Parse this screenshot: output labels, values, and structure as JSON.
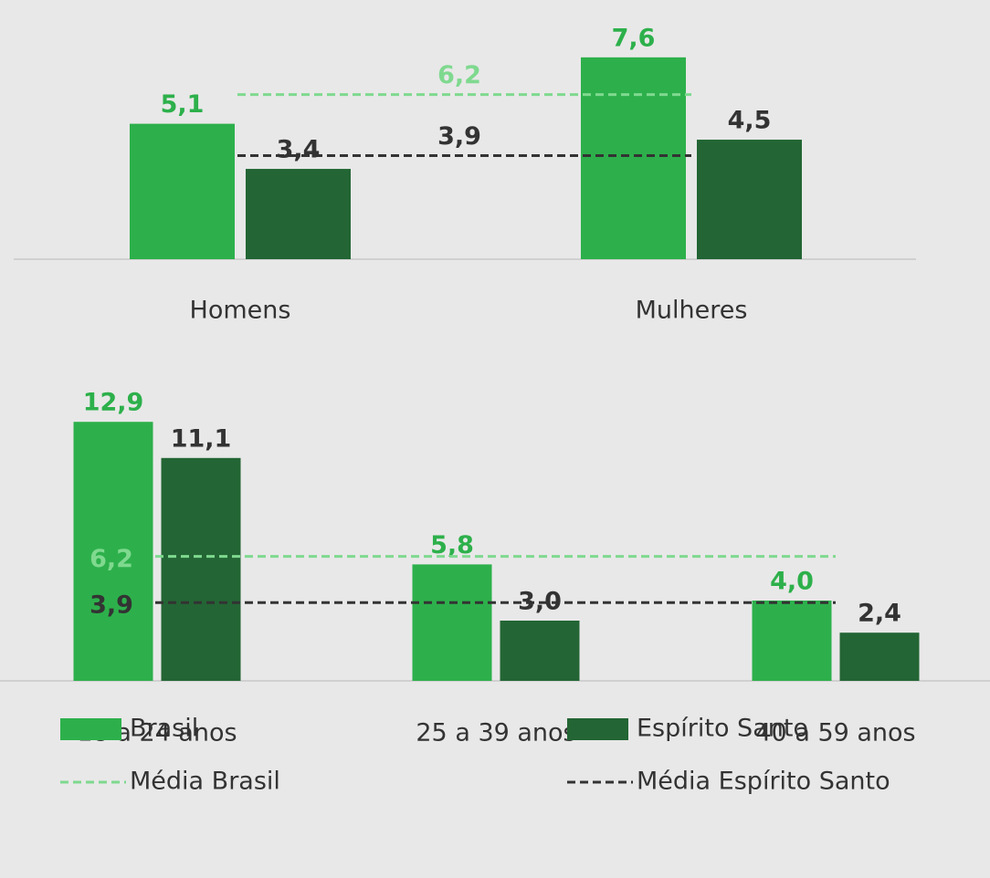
{
  "chart_data": [
    {
      "type": "bar",
      "categories": [
        "Homens",
        "Mulheres"
      ],
      "series": [
        {
          "name": "Brasil",
          "color": "#2db04b",
          "values": [
            5.1,
            7.6
          ],
          "value_labels": [
            "5,1",
            "7,6"
          ]
        },
        {
          "name": "Espírito Santo",
          "color": "#236534",
          "values": [
            3.4,
            4.5
          ],
          "value_labels": [
            "3,4",
            "4,5"
          ]
        }
      ],
      "reference_lines": [
        {
          "name": "Média Brasil",
          "color": "#7fd98f",
          "value": 6.2,
          "label": "6,2"
        },
        {
          "name": "Média Espírito Santo",
          "color": "#333333",
          "value": 3.9,
          "label": "3,9"
        }
      ],
      "ylim": [
        0,
        8
      ]
    },
    {
      "type": "bar",
      "categories": [
        "18 a 24 anos",
        "25 a 39 anos",
        "40 a 59 anos"
      ],
      "series": [
        {
          "name": "Brasil",
          "color": "#2db04b",
          "values": [
            12.9,
            5.8,
            4.0
          ],
          "value_labels": [
            "12,9",
            "5,8",
            "4,0"
          ]
        },
        {
          "name": "Espírito Santo",
          "color": "#236534",
          "values": [
            11.1,
            3.0,
            2.4
          ],
          "value_labels": [
            "11,1",
            "3,0",
            "2,4"
          ]
        }
      ],
      "reference_lines": [
        {
          "name": "Média Brasil",
          "color": "#7fd98f",
          "value": 6.2,
          "label": "6,2"
        },
        {
          "name": "Média Espírito Santo",
          "color": "#333333",
          "value": 3.9,
          "label": "3,9"
        }
      ],
      "ylim": [
        0,
        14
      ]
    }
  ]
}
